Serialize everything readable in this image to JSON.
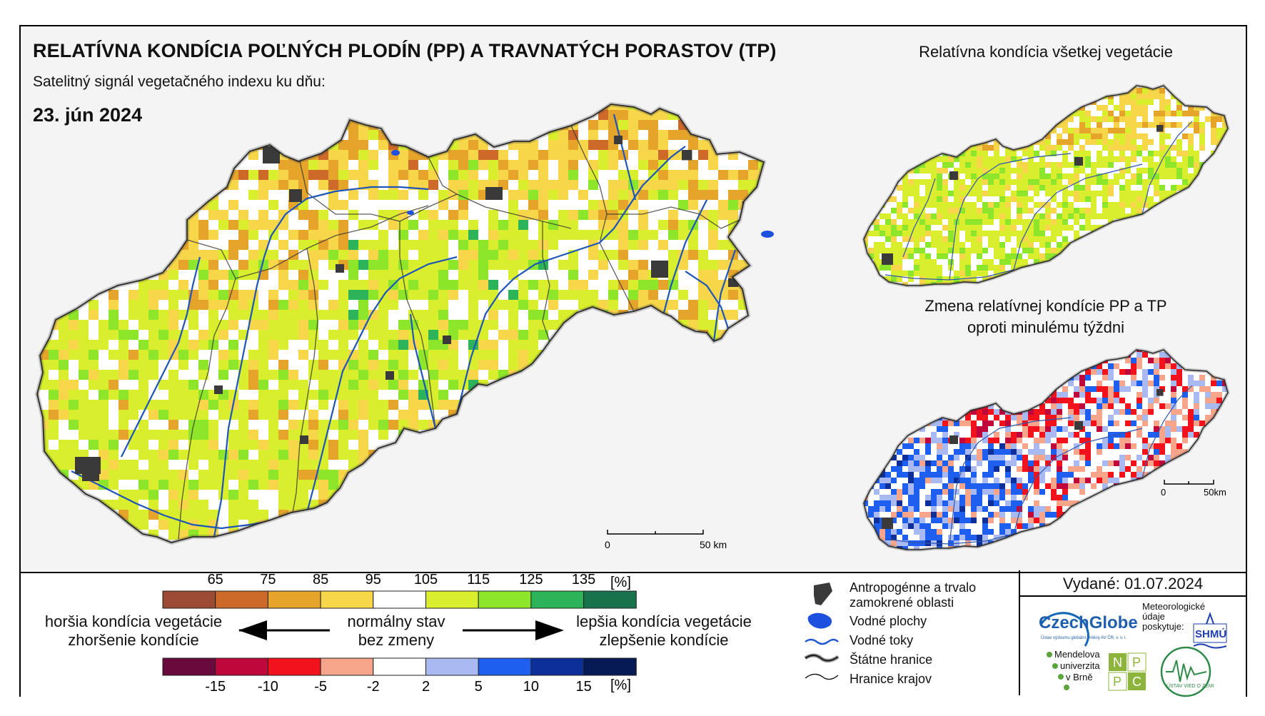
{
  "header": {
    "title": "RELATÍVNA KONDÍCIA POĽNÝCH PLODÍN (PP) A TRAVNATÝCH PORASTOV (TP)",
    "subtitle": "Satelitný signál vegetačného indexu ku dňu:",
    "date": "23. jún 2024"
  },
  "insets": {
    "all_vegetation_title": "Relatívna kondícia všetkej vegetácie",
    "change_title_line1": "Zmena relatívnej kondície PP a TP",
    "change_title_line2": "oproti minulému týždni"
  },
  "scalebars": {
    "main": {
      "start": "0",
      "end": "50 km"
    },
    "inset": {
      "start": "0",
      "end": "50km"
    }
  },
  "legend": {
    "condition_ticks": [
      "65",
      "75",
      "85",
      "95",
      "105",
      "115",
      "125",
      "135"
    ],
    "condition_unit": "[%]",
    "condition_colors": [
      "#9b4a33",
      "#cd6a2a",
      "#e5a52a",
      "#f7d64a",
      "#ffffff",
      "#d9ef2e",
      "#8ee62a",
      "#2db35a",
      "#16734b"
    ],
    "change_ticks": [
      "-15",
      "-10",
      "-5",
      "-2",
      "2",
      "5",
      "10",
      "15"
    ],
    "change_unit": "[%]",
    "change_colors": [
      "#6a0a3c",
      "#c0073b",
      "#f1121c",
      "#f7a58a",
      "#ffffff",
      "#a9b9f2",
      "#1f5ff0",
      "#0d2f9a",
      "#061a55"
    ],
    "worse_line1": "horšia kondícia vegetácie",
    "worse_line2": "zhoršenie kondície",
    "normal_line1": "normálny stav",
    "normal_line2": "bez zmeny",
    "better_line1": "lepšia kondícia vegetácie",
    "better_line2": "zlepšenie kondície"
  },
  "map_legend": {
    "urban": "Antropogénne a trvalo zamokrené oblasti",
    "water_bodies": "Vodné plochy",
    "rivers": "Vodné toky",
    "state_border": "Štátne hranice",
    "region_border": "Hranice krajov"
  },
  "issued": "Vydané: 01.07.2024",
  "logos": {
    "czechglobe": "CzechGlobe",
    "czechglobe_sub": "Ústav výzkumu globální změny AV ČR, v. v. i.",
    "meteo_line1": "Meteorologické",
    "meteo_line2": "údaje",
    "meteo_line3": "poskytuje:",
    "shmu": "SHMÚ",
    "mendel_line1": "Mendelova",
    "mendel_line2": "univerzita",
    "mendel_line3": "v Brně",
    "nppc": [
      "N",
      "P",
      "P",
      "C"
    ],
    "uvoz": "ÚSTAV VIED O ZEMI"
  }
}
